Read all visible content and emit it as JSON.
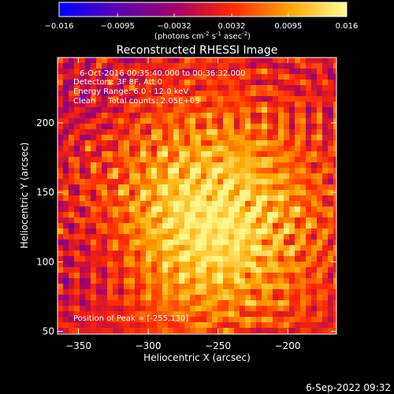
{
  "colorbar": {
    "ticks": [
      "-0.016",
      "-0.0095",
      "-0.0032",
      "0.0032",
      "0.0095",
      "0.016"
    ],
    "units_main": "(photons cm",
    "units_exp1": "-2",
    "units_mid": " s",
    "units_exp2": "-1",
    "units_end": " asec",
    "units_exp3": "-2",
    "units_close": ")",
    "range": [
      -0.016,
      0.016
    ]
  },
  "chart_data": {
    "type": "heatmap",
    "title": "Reconstructed RHESSI Image",
    "xlabel": "Heliocentric X (arcsec)",
    "ylabel": "Heliocentric Y (arcsec)",
    "xlim": [
      -365,
      -165
    ],
    "ylim": [
      48,
      247
    ],
    "xticks": [
      -350,
      -300,
      -250,
      -200
    ],
    "yticks": [
      50,
      100,
      150,
      200
    ],
    "peak": [
      -255,
      130
    ],
    "colormap_stops": [
      "#0000ff",
      "#5a00b4",
      "#a0006e",
      "#ff2800",
      "#ffa500",
      "#ffff96"
    ],
    "annotations": [
      "6-Oct-2016 00:35:40.000 to 00:36:32.000",
      "Detectors: 3F 8F, Att 0",
      "Energy Range: 6.0 - 12.0 keV",
      "Clean     Total counts: 2.05E+03"
    ],
    "peak_label": "Position of Peak = [-255,130]"
  },
  "footer_timestamp": "6-Sep-2022 09:32"
}
